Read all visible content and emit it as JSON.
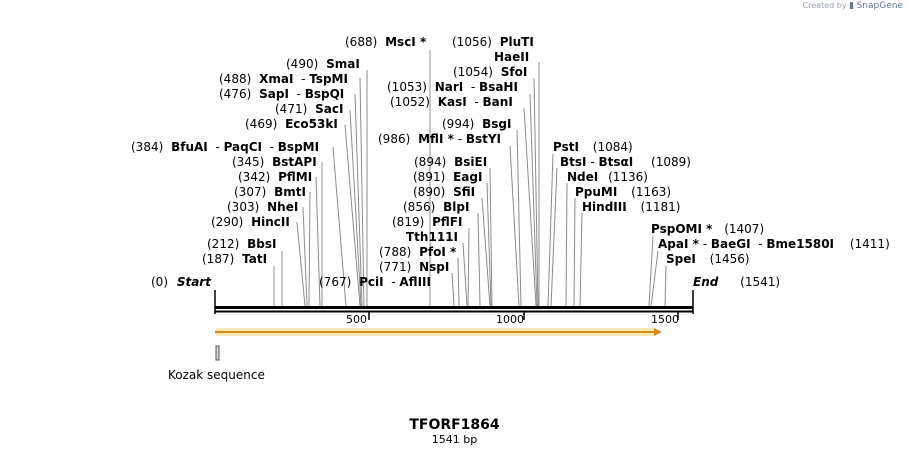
{
  "credit": {
    "prefix": "Created by",
    "brand": "SnapGene"
  },
  "sequence": {
    "name": "TFORF1864",
    "length_label": "1541 bp",
    "length": 1541
  },
  "ruler": {
    "ticks": [
      "500",
      "1000",
      "1500"
    ]
  },
  "features": [
    {
      "name": "Kozak sequence"
    }
  ],
  "endpoints": [
    {
      "pos": "(0)",
      "name": "Start"
    },
    {
      "name": "End",
      "pos": "(1541)"
    }
  ],
  "sites": [
    {
      "pos": "(688)",
      "name": "MscI *"
    },
    {
      "pos": "(490)",
      "name": "SmaI"
    },
    {
      "pos": "(488)",
      "name": "XmaI",
      "alt": "TspMI"
    },
    {
      "pos": "(476)",
      "name": "SapI",
      "alt": "BspQI"
    },
    {
      "pos": "(471)",
      "name": "SacI"
    },
    {
      "pos": "(469)",
      "name": "Eco53kI"
    },
    {
      "pos": "(384)",
      "name": "BfuAI",
      "alt": "PaqCI",
      "alt2": "BspMI"
    },
    {
      "pos": "(345)",
      "name": "BstAPI"
    },
    {
      "pos": "(342)",
      "name": "PflMI"
    },
    {
      "pos": "(307)",
      "name": "BmtI"
    },
    {
      "pos": "(303)",
      "name": "NheI"
    },
    {
      "pos": "(290)",
      "name": "HincII"
    },
    {
      "pos": "(212)",
      "name": "BbsI"
    },
    {
      "pos": "(187)",
      "name": "TatI"
    },
    {
      "pos": "(767)",
      "name": "PciI",
      "alt": "AflIII"
    },
    {
      "pos": "(1056)",
      "name": "PluTI"
    },
    {
      "name": "HaeII"
    },
    {
      "pos": "(1054)",
      "name": "SfoI"
    },
    {
      "pos": "(1053)",
      "name": "NarI",
      "alt": "BsaHI"
    },
    {
      "pos": "(1052)",
      "name": "KasI",
      "alt": "BanI"
    },
    {
      "pos": "(994)",
      "name": "BsgI"
    },
    {
      "pos": "(986)",
      "name": "MflI *",
      "alt": "BstYI"
    },
    {
      "pos": "(894)",
      "name": "BsiEI"
    },
    {
      "pos": "(891)",
      "name": "EagI"
    },
    {
      "pos": "(890)",
      "name": "SfiI"
    },
    {
      "pos": "(856)",
      "name": "BlpI"
    },
    {
      "pos": "(819)",
      "name": "PflFI"
    },
    {
      "name": "Tth111I"
    },
    {
      "pos": "(788)",
      "name": "PfoI *"
    },
    {
      "pos": "(771)",
      "name": "NspI"
    },
    {
      "name": "PstI",
      "pos": "(1084)"
    },
    {
      "name": "BtsI",
      "alt": "BtsαI",
      "pos": "(1089)"
    },
    {
      "name": "NdeI",
      "pos": "(1136)"
    },
    {
      "name": "PpuMI",
      "pos": "(1163)"
    },
    {
      "name": "HindIII",
      "pos": "(1181)"
    },
    {
      "name": "PspOMI *",
      "pos": "(1407)"
    },
    {
      "name": "ApaI *",
      "alt": "BaeGI",
      "alt2": "Bme1580I",
      "pos": "(1411)"
    },
    {
      "name": "SpeI",
      "pos": "(1456)"
    }
  ]
}
